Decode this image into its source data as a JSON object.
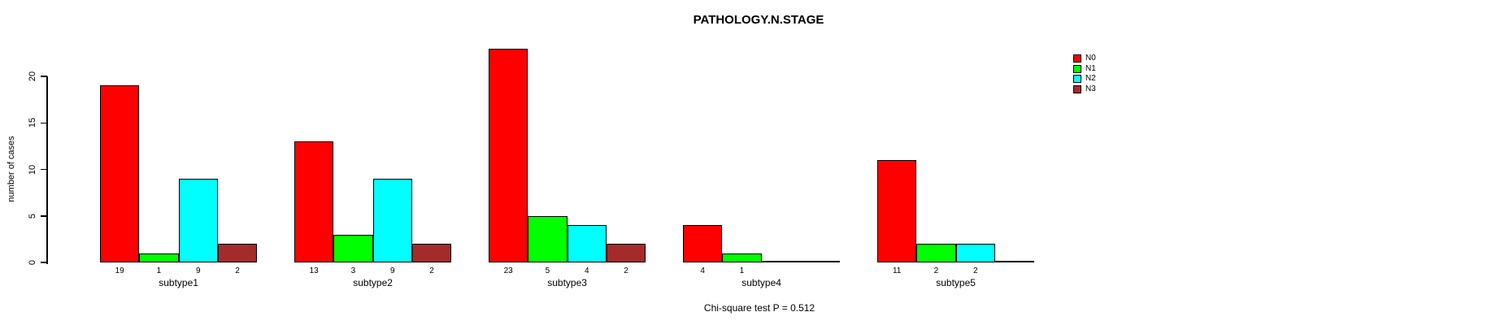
{
  "chart_data": {
    "type": "bar",
    "title": "PATHOLOGY.N.STAGE",
    "xlabel": "",
    "ylabel": "number of cases",
    "ylim": [
      0,
      20
    ],
    "yticks": [
      0,
      5,
      10,
      15,
      20
    ],
    "categories": [
      "subtype1",
      "subtype2",
      "subtype3",
      "subtype4",
      "subtype5"
    ],
    "series": [
      {
        "name": "N0",
        "color": "#ff0000",
        "values": [
          19,
          13,
          23,
          4,
          11
        ]
      },
      {
        "name": "N1",
        "color": "#00ff00",
        "values": [
          1,
          3,
          5,
          1,
          2
        ]
      },
      {
        "name": "N2",
        "color": "#00ffff",
        "values": [
          9,
          9,
          4,
          0,
          2
        ]
      },
      {
        "name": "N3",
        "color": "#a52a2a",
        "values": [
          2,
          2,
          2,
          0,
          0
        ]
      }
    ],
    "bar_value_labels_shown": true,
    "legend_position": "top-right",
    "grid": false,
    "annotation": "Chi-square test P = 0.512"
  }
}
